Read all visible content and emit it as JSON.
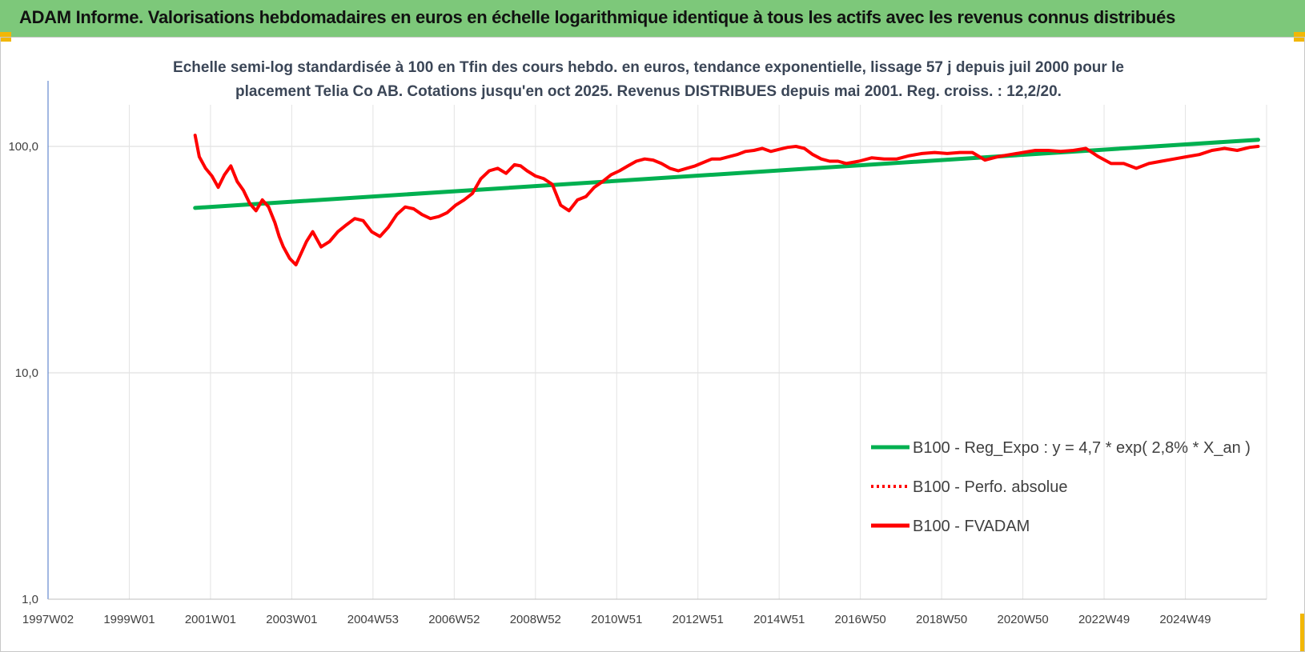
{
  "header": {
    "title": "ADAM Informe. Valorisations hebdomadaires en euros en échelle logarithmique identique à tous les actifs avec les revenus connus distribués",
    "background": "#7dc87a"
  },
  "chart_data": {
    "type": "line",
    "title_lines": [
      "Echelle semi-log standardisée à 100 en Tfin des cours hebdo. en euros, tendance exponentielle, lissage 57 j depuis juil 2000 pour le",
      "placement Telia Co AB. Cotations jusqu'en oct 2025. Revenus DISTRIBUES depuis mai 2001. Reg. croiss. : 12,2/20."
    ],
    "y_scale": "log",
    "ylim": [
      1,
      200
    ],
    "y_ticks": [
      "1,0",
      "10,0",
      "100,0"
    ],
    "y_tick_values": [
      1,
      10,
      100
    ],
    "x_ticks": [
      "1997W02",
      "1999W01",
      "2001W01",
      "2003W01",
      "2004W53",
      "2006W52",
      "2008W52",
      "2010W51",
      "2012W51",
      "2014W51",
      "2016W50",
      "2018W50",
      "2020W50",
      "2022W49",
      "2024W49"
    ],
    "x_range": [
      1997.0,
      2026.0
    ],
    "grid": "vertical",
    "legend_position": "right",
    "series": [
      {
        "name": "B100 - Reg_Expo : y = 4,7 * exp( 2,8% *  X_an )",
        "color": "#00b050",
        "style": "solid",
        "x": [
          2000.5,
          2025.8
        ],
        "y": [
          53.5,
          107
        ]
      },
      {
        "name": "B100 - Perfo. absolue",
        "color": "#ff0000",
        "style": "dotted",
        "x": [],
        "y": []
      },
      {
        "name": "B100 - FVADAM",
        "color": "#ff0000",
        "style": "solid",
        "x": [
          2000.5,
          2000.6,
          2000.75,
          2000.9,
          2001.05,
          2001.2,
          2001.35,
          2001.5,
          2001.65,
          2001.8,
          2001.95,
          2002.1,
          2002.25,
          2002.4,
          2002.5,
          2002.6,
          2002.75,
          2002.9,
          2003.0,
          2003.15,
          2003.3,
          2003.5,
          2003.7,
          2003.9,
          2004.1,
          2004.3,
          2004.5,
          2004.7,
          2004.9,
          2005.1,
          2005.3,
          2005.5,
          2005.7,
          2005.9,
          2006.1,
          2006.3,
          2006.5,
          2006.7,
          2006.9,
          2007.1,
          2007.3,
          2007.5,
          2007.7,
          2007.9,
          2008.1,
          2008.25,
          2008.4,
          2008.6,
          2008.8,
          2009.0,
          2009.2,
          2009.4,
          2009.6,
          2009.8,
          2010.0,
          2010.2,
          2010.4,
          2010.6,
          2010.8,
          2011.0,
          2011.2,
          2011.4,
          2011.6,
          2011.8,
          2012.0,
          2012.2,
          2012.4,
          2012.6,
          2012.8,
          2013.0,
          2013.2,
          2013.4,
          2013.6,
          2013.8,
          2014.0,
          2014.2,
          2014.4,
          2014.6,
          2014.8,
          2015.0,
          2015.2,
          2015.4,
          2015.6,
          2015.8,
          2016.0,
          2016.3,
          2016.6,
          2016.9,
          2017.2,
          2017.5,
          2017.8,
          2018.1,
          2018.4,
          2018.7,
          2019.0,
          2019.3,
          2019.6,
          2019.9,
          2020.2,
          2020.5,
          2020.8,
          2021.1,
          2021.4,
          2021.7,
          2022.0,
          2022.3,
          2022.6,
          2022.9,
          2023.2,
          2023.5,
          2023.8,
          2024.1,
          2024.4,
          2024.7,
          2025.0,
          2025.3,
          2025.6,
          2025.8
        ],
        "y": [
          112,
          90,
          80,
          74,
          66,
          75,
          82,
          70,
          64,
          56,
          52,
          58,
          54,
          46,
          40,
          36,
          32,
          30,
          33,
          38,
          42,
          36,
          38,
          42,
          45,
          48,
          47,
          42,
          40,
          44,
          50,
          54,
          53,
          50,
          48,
          49,
          51,
          55,
          58,
          62,
          72,
          78,
          80,
          76,
          83,
          82,
          78,
          74,
          72,
          68,
          55,
          52,
          58,
          60,
          66,
          70,
          75,
          78,
          82,
          86,
          88,
          87,
          84,
          80,
          78,
          80,
          82,
          85,
          88,
          88,
          90,
          92,
          95,
          96,
          98,
          95,
          97,
          99,
          100,
          98,
          92,
          88,
          86,
          86,
          84,
          86,
          89,
          88,
          88,
          91,
          93,
          94,
          93,
          94,
          94,
          87,
          90,
          92,
          94,
          96,
          96,
          95,
          96,
          98,
          90,
          84,
          84,
          80,
          84,
          86,
          88,
          90,
          92,
          96,
          98,
          96,
          99,
          100
        ]
      }
    ]
  }
}
